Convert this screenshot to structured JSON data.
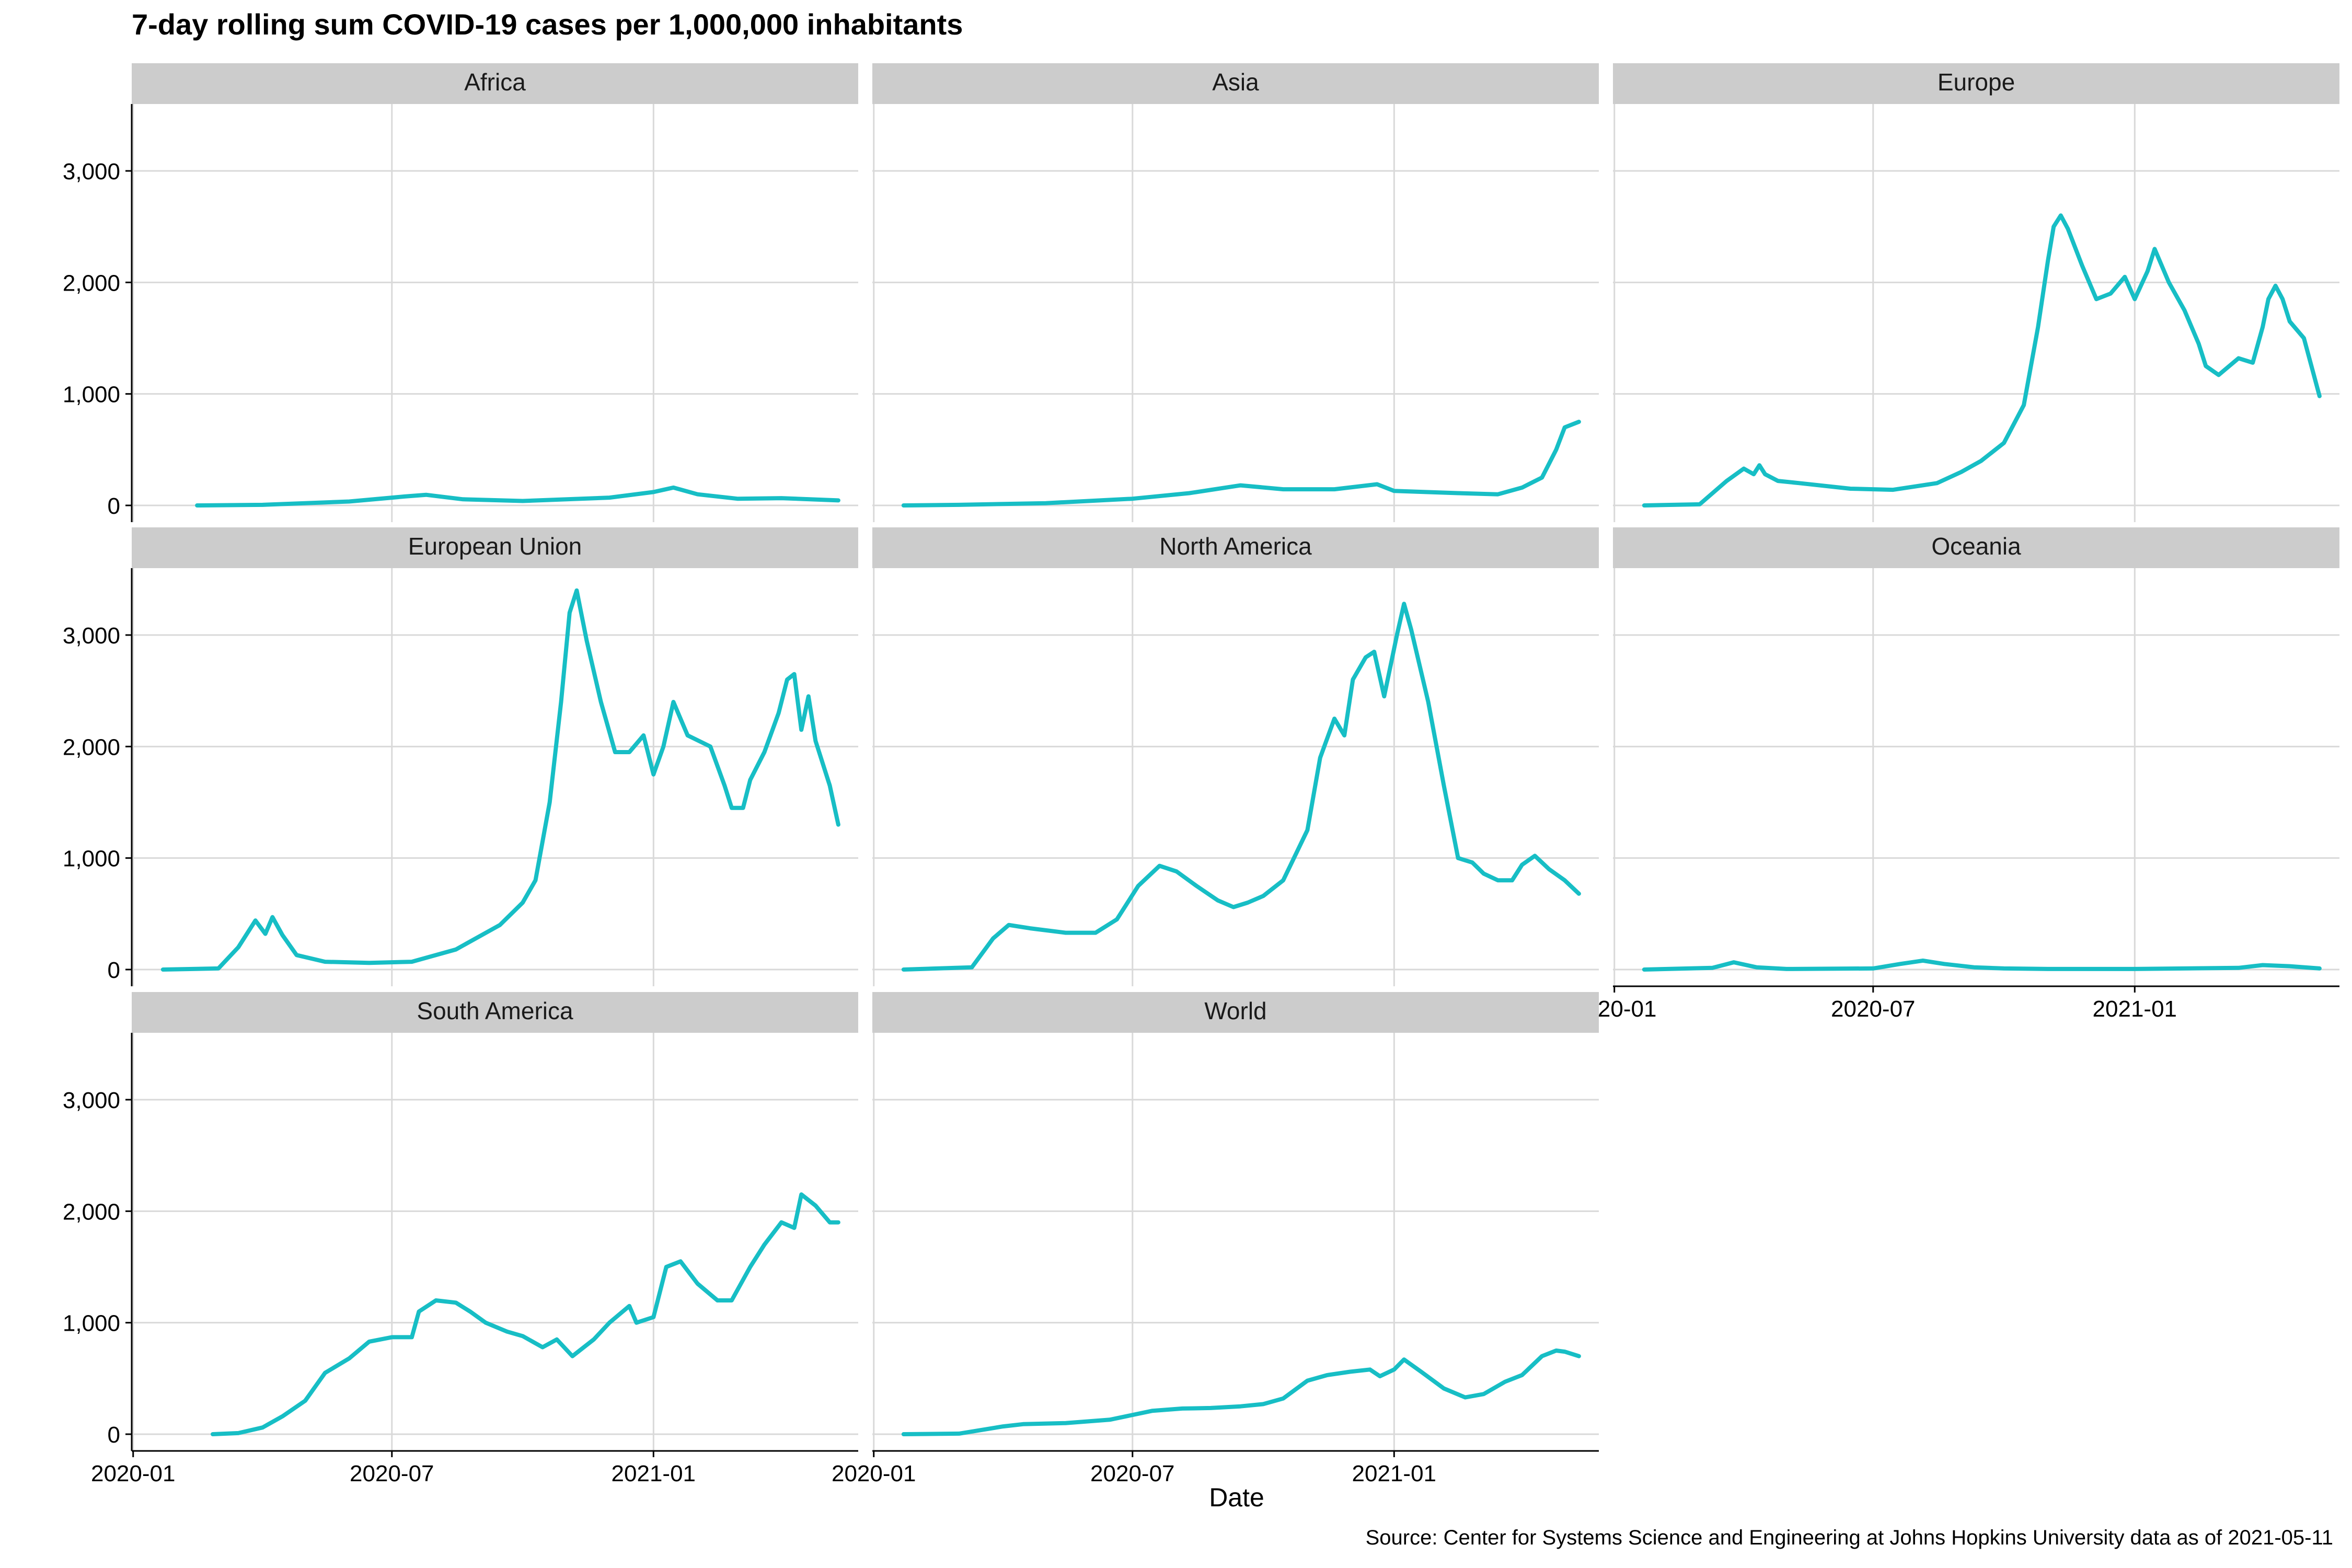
{
  "title": "7-day rolling sum COVID-19 cases per 1,000,000 inhabitants",
  "caption": "Source: Center for Systems Science and Engineering at Johns Hopkins University data as of 2021-05-11",
  "colors": {
    "line": "#17BEC5",
    "strip": "#CCCCCC",
    "grid": "#D9D9D9",
    "axis": "#000000"
  },
  "chart_data": {
    "type": "line",
    "layout": "small-multiples",
    "xlabel": "Date",
    "ylabel": "",
    "ylim": [
      -150,
      3600
    ],
    "xlim": [
      "2019-12-31",
      "2021-05-25"
    ],
    "x_ticks": [
      "2020-01",
      "2020-07",
      "2021-01"
    ],
    "y_ticks": [
      0,
      1000,
      2000,
      3000
    ],
    "y_tick_labels": [
      "0",
      "1,000",
      "2,000",
      "3,000"
    ],
    "grid": true,
    "panels": [
      {
        "name": "Africa",
        "x": [
          "2020-02-15",
          "2020-04-01",
          "2020-06-01",
          "2020-07-10",
          "2020-07-25",
          "2020-08-20",
          "2020-10-01",
          "2020-12-01",
          "2021-01-01",
          "2021-01-15",
          "2021-02-01",
          "2021-03-01",
          "2021-04-01",
          "2021-05-11"
        ],
        "y": [
          0,
          5,
          35,
          80,
          95,
          55,
          40,
          70,
          120,
          160,
          100,
          60,
          65,
          45
        ]
      },
      {
        "name": "Asia",
        "x": [
          "2020-01-22",
          "2020-03-01",
          "2020-05-01",
          "2020-07-01",
          "2020-08-10",
          "2020-09-15",
          "2020-10-15",
          "2020-11-20",
          "2020-12-20",
          "2021-01-01",
          "2021-02-15",
          "2021-03-15",
          "2021-04-01",
          "2021-04-15",
          "2021-04-25",
          "2021-05-01",
          "2021-05-11"
        ],
        "y": [
          0,
          5,
          20,
          60,
          110,
          180,
          145,
          145,
          190,
          130,
          110,
          100,
          160,
          250,
          500,
          700,
          750
        ]
      },
      {
        "name": "Europe",
        "x": [
          "2020-01-22",
          "2020-03-01",
          "2020-03-20",
          "2020-04-01",
          "2020-04-08",
          "2020-04-12",
          "2020-04-16",
          "2020-04-25",
          "2020-05-10",
          "2020-06-15",
          "2020-07-15",
          "2020-08-15",
          "2020-09-01",
          "2020-09-15",
          "2020-10-01",
          "2020-10-15",
          "2020-10-25",
          "2020-11-01",
          "2020-11-05",
          "2020-11-10",
          "2020-11-15",
          "2020-11-25",
          "2020-12-05",
          "2020-12-15",
          "2020-12-25",
          "2021-01-01",
          "2021-01-10",
          "2021-01-15",
          "2021-01-25",
          "2021-02-05",
          "2021-02-15",
          "2021-02-20",
          "2021-03-01",
          "2021-03-15",
          "2021-03-25",
          "2021-04-01",
          "2021-04-05",
          "2021-04-10",
          "2021-04-15",
          "2021-04-20",
          "2021-04-30",
          "2021-05-11"
        ],
        "y": [
          0,
          10,
          220,
          330,
          280,
          360,
          280,
          220,
          200,
          150,
          140,
          200,
          300,
          400,
          560,
          900,
          1600,
          2200,
          2500,
          2600,
          2480,
          2150,
          1850,
          1900,
          2050,
          1850,
          2100,
          2300,
          2000,
          1750,
          1450,
          1250,
          1170,
          1320,
          1280,
          1600,
          1850,
          1970,
          1850,
          1650,
          1500,
          980
        ]
      },
      {
        "name": "European Union",
        "x": [
          "2020-01-22",
          "2020-03-01",
          "2020-03-15",
          "2020-03-27",
          "2020-04-03",
          "2020-04-08",
          "2020-04-15",
          "2020-04-25",
          "2020-05-15",
          "2020-06-15",
          "2020-07-15",
          "2020-08-15",
          "2020-09-15",
          "2020-10-01",
          "2020-10-10",
          "2020-10-20",
          "2020-10-28",
          "2020-11-03",
          "2020-11-08",
          "2020-11-15",
          "2020-11-25",
          "2020-12-05",
          "2020-12-15",
          "2020-12-25",
          "2021-01-01",
          "2021-01-08",
          "2021-01-15",
          "2021-01-25",
          "2021-02-10",
          "2021-02-20",
          "2021-02-25",
          "2021-03-05",
          "2021-03-10",
          "2021-03-20",
          "2021-03-30",
          "2021-04-05",
          "2021-04-10",
          "2021-04-15",
          "2021-04-20",
          "2021-04-25",
          "2021-05-05",
          "2021-05-11"
        ],
        "y": [
          0,
          10,
          200,
          440,
          320,
          470,
          310,
          130,
          70,
          60,
          70,
          180,
          400,
          600,
          800,
          1500,
          2400,
          3200,
          3400,
          2950,
          2400,
          1950,
          1950,
          2100,
          1750,
          2000,
          2400,
          2100,
          2000,
          1650,
          1450,
          1450,
          1700,
          1950,
          2300,
          2600,
          2650,
          2150,
          2450,
          2050,
          1650,
          1300
        ]
      },
      {
        "name": "North America",
        "x": [
          "2020-01-22",
          "2020-03-10",
          "2020-03-25",
          "2020-04-05",
          "2020-04-20",
          "2020-05-15",
          "2020-06-05",
          "2020-06-20",
          "2020-07-05",
          "2020-07-20",
          "2020-08-01",
          "2020-08-15",
          "2020-08-30",
          "2020-09-10",
          "2020-09-20",
          "2020-10-01",
          "2020-10-15",
          "2020-11-01",
          "2020-11-10",
          "2020-11-20",
          "2020-11-27",
          "2020-12-03",
          "2020-12-12",
          "2020-12-18",
          "2020-12-25",
          "2021-01-03",
          "2021-01-08",
          "2021-01-13",
          "2021-01-25",
          "2021-02-05",
          "2021-02-15",
          "2021-02-25",
          "2021-03-05",
          "2021-03-15",
          "2021-03-25",
          "2021-04-01",
          "2021-04-10",
          "2021-04-20",
          "2021-05-01",
          "2021-05-11"
        ],
        "y": [
          0,
          20,
          280,
          400,
          370,
          330,
          330,
          450,
          750,
          930,
          880,
          750,
          620,
          560,
          600,
          660,
          800,
          1250,
          1900,
          2250,
          2100,
          2600,
          2800,
          2850,
          2450,
          3000,
          3280,
          3050,
          2400,
          1650,
          1000,
          960,
          860,
          800,
          800,
          940,
          1020,
          900,
          800,
          680
        ]
      },
      {
        "name": "Oceania",
        "x": [
          "2020-01-22",
          "2020-03-10",
          "2020-03-25",
          "2020-04-10",
          "2020-05-01",
          "2020-07-01",
          "2020-07-20",
          "2020-08-05",
          "2020-08-20",
          "2020-09-10",
          "2020-10-01",
          "2020-11-01",
          "2021-01-01",
          "2021-03-15",
          "2021-04-01",
          "2021-04-20",
          "2021-05-11"
        ],
        "y": [
          0,
          15,
          65,
          20,
          5,
          10,
          50,
          80,
          50,
          20,
          10,
          5,
          5,
          15,
          40,
          30,
          10
        ]
      },
      {
        "name": "South America",
        "x": [
          "2020-02-26",
          "2020-03-15",
          "2020-04-01",
          "2020-04-15",
          "2020-05-01",
          "2020-05-15",
          "2020-06-01",
          "2020-06-15",
          "2020-07-01",
          "2020-07-15",
          "2020-07-20",
          "2020-08-01",
          "2020-08-15",
          "2020-08-25",
          "2020-09-05",
          "2020-09-20",
          "2020-10-01",
          "2020-10-15",
          "2020-10-25",
          "2020-11-05",
          "2020-11-20",
          "2020-12-01",
          "2020-12-15",
          "2020-12-20",
          "2021-01-01",
          "2021-01-10",
          "2021-01-20",
          "2021-02-01",
          "2021-02-15",
          "2021-02-25",
          "2021-03-10",
          "2021-03-20",
          "2021-04-01",
          "2021-04-10",
          "2021-04-15",
          "2021-04-25",
          "2021-05-05",
          "2021-05-11"
        ],
        "y": [
          0,
          10,
          60,
          160,
          300,
          550,
          680,
          830,
          870,
          870,
          1100,
          1200,
          1180,
          1100,
          1000,
          920,
          880,
          780,
          850,
          700,
          850,
          1000,
          1150,
          1000,
          1050,
          1500,
          1550,
          1350,
          1200,
          1200,
          1500,
          1700,
          1900,
          1850,
          2150,
          2050,
          1900,
          1900
        ]
      },
      {
        "name": "World",
        "x": [
          "2020-01-22",
          "2020-03-01",
          "2020-04-01",
          "2020-04-15",
          "2020-05-15",
          "2020-06-15",
          "2020-07-15",
          "2020-08-05",
          "2020-08-25",
          "2020-09-15",
          "2020-10-01",
          "2020-10-15",
          "2020-11-01",
          "2020-11-15",
          "2020-12-01",
          "2020-12-15",
          "2020-12-22",
          "2021-01-01",
          "2021-01-08",
          "2021-01-20",
          "2021-02-05",
          "2021-02-20",
          "2021-03-05",
          "2021-03-20",
          "2021-04-01",
          "2021-04-15",
          "2021-04-25",
          "2021-05-01",
          "2021-05-11"
        ],
        "y": [
          0,
          5,
          70,
          90,
          100,
          130,
          210,
          230,
          235,
          250,
          270,
          320,
          480,
          530,
          560,
          580,
          520,
          580,
          670,
          560,
          410,
          330,
          360,
          470,
          530,
          700,
          750,
          740,
          700
        ]
      }
    ]
  }
}
